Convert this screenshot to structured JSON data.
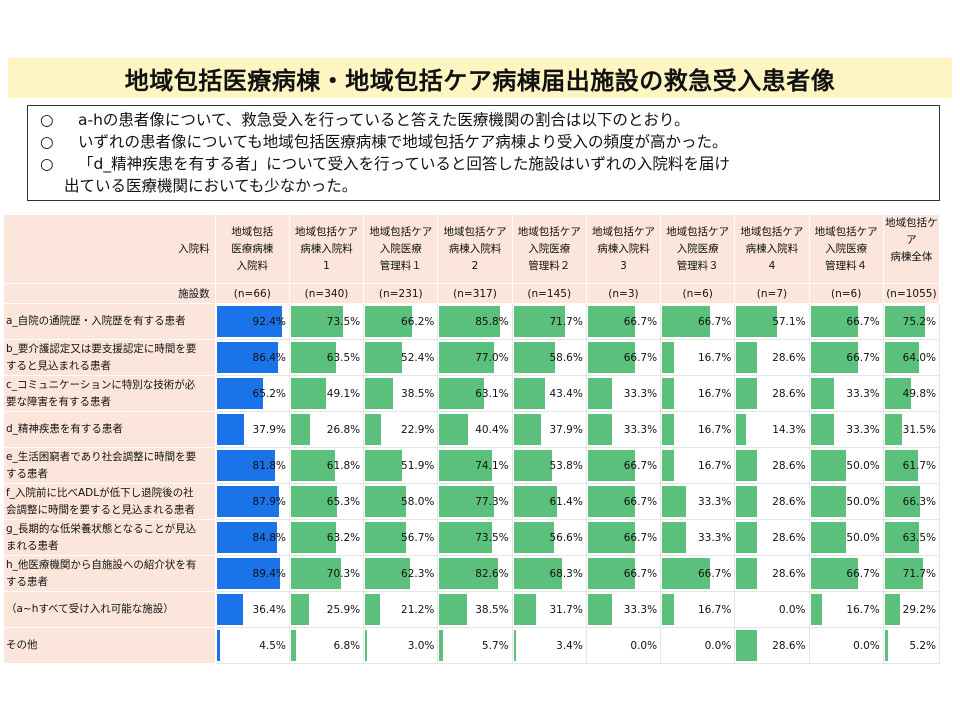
{
  "title": "地域包括医療病棟・地域包括ケア病棟届出施設の救急受入患者像",
  "summary": [
    {
      "mark": "○",
      "text": "a-hの患者像について、救急受入を行っていると答えた医療機関の割合は以下のとおり。"
    },
    {
      "mark": "○",
      "text": "いずれの患者像についても地域包括医療病棟で地域包括ケア病棟より受入の頻度が高かった。"
    },
    {
      "mark": "○",
      "text": "「d_精神疾患を有する者」について受入を行っていると回答した施設はいずれの入院料を届け"
    }
  ],
  "summary_cont": "出ている医療機関においても少なかった。",
  "header_label": "入院料",
  "n_label": "施設数",
  "colors": {
    "blue": "#1a73e8",
    "green": "#5cc07d",
    "bg": "#fce6dc",
    "title_bg": "#fff5c2"
  },
  "columns": [
    {
      "l1": "地域包括",
      "l2": "医療病棟",
      "l3": "入院料",
      "n": "(n=66)"
    },
    {
      "l1": "地域包括ケア",
      "l2": "病棟入院料",
      "l3": "1",
      "n": "(n=340)"
    },
    {
      "l1": "地域包括ケア",
      "l2": "入院医療",
      "l3": "管理料１",
      "n": "(n=231)"
    },
    {
      "l1": "地域包括ケア",
      "l2": "病棟入院料",
      "l3": "2",
      "n": "(n=317)"
    },
    {
      "l1": "地域包括ケア",
      "l2": "入院医療",
      "l3": "管理料２",
      "n": "(n=145)"
    },
    {
      "l1": "地域包括ケア",
      "l2": "病棟入院料",
      "l3": "3",
      "n": "(n=3)"
    },
    {
      "l1": "地域包括ケア",
      "l2": "入院医療",
      "l3": "管理料３",
      "n": "(n=6)"
    },
    {
      "l1": "地域包括ケア",
      "l2": "病棟入院料",
      "l3": "4",
      "n": "(n=7)"
    },
    {
      "l1": "地域包括ケア",
      "l2": "入院医療",
      "l3": "管理料４",
      "n": "(n=6)"
    },
    {
      "l1": "地域包括ケア",
      "l2": "病棟全体",
      "l3": "",
      "n": "(n=1055)"
    }
  ],
  "rows": [
    {
      "l1": "a_自院の通院歴・入院歴を有する患者",
      "l2": "",
      "values": [
        92.4,
        73.5,
        66.2,
        85.8,
        71.7,
        66.7,
        66.7,
        57.1,
        66.7,
        75.2
      ],
      "labels": [
        "92.4%",
        "73.5%",
        "66.2%",
        "85.8%",
        "71.7%",
        "66.7%",
        "66.7%",
        "57.1%",
        "66.7%",
        "75.2%"
      ]
    },
    {
      "l1": "b_要介護認定又は要支援認定に時間を要",
      "l2": "すると見込まれる患者",
      "values": [
        86.4,
        63.5,
        52.4,
        77.0,
        58.6,
        66.7,
        16.7,
        28.6,
        66.7,
        64.0
      ],
      "labels": [
        "86.4%",
        "63.5%",
        "52.4%",
        "77.0%",
        "58.6%",
        "66.7%",
        "16.7%",
        "28.6%",
        "66.7%",
        "64.0%"
      ]
    },
    {
      "l1": "c_コミュニケーションに特別な技術が必",
      "l2": "要な障害を有する患者",
      "values": [
        65.2,
        49.1,
        38.5,
        63.1,
        43.4,
        33.3,
        16.7,
        28.6,
        33.3,
        49.8
      ],
      "labels": [
        "65.2%",
        "49.1%",
        "38.5%",
        "63.1%",
        "43.4%",
        "33.3%",
        "16.7%",
        "28.6%",
        "33.3%",
        "49.8%"
      ]
    },
    {
      "l1": "d_精神疾患を有する患者",
      "l2": "",
      "values": [
        37.9,
        26.8,
        22.9,
        40.4,
        37.9,
        33.3,
        16.7,
        14.3,
        33.3,
        31.5
      ],
      "labels": [
        "37.9%",
        "26.8%",
        "22.9%",
        "40.4%",
        "37.9%",
        "33.3%",
        "16.7%",
        "14.3%",
        "33.3%",
        "31.5%"
      ]
    },
    {
      "l1": "e_生活困窮者であり社会調整に時間を要",
      "l2": "する患者",
      "values": [
        81.8,
        61.8,
        51.9,
        74.1,
        53.8,
        66.7,
        16.7,
        28.6,
        50.0,
        61.7
      ],
      "labels": [
        "81.8%",
        "61.8%",
        "51.9%",
        "74.1%",
        "53.8%",
        "66.7%",
        "16.7%",
        "28.6%",
        "50.0%",
        "61.7%"
      ]
    },
    {
      "l1": "f_入院前に比べADLが低下し退院後の社",
      "l2": "会調整に時間を要すると見込まれる患者",
      "values": [
        87.9,
        65.3,
        58.0,
        77.3,
        61.4,
        66.7,
        33.3,
        28.6,
        50.0,
        66.3
      ],
      "labels": [
        "87.9%",
        "65.3%",
        "58.0%",
        "77.3%",
        "61.4%",
        "66.7%",
        "33.3%",
        "28.6%",
        "50.0%",
        "66.3%"
      ]
    },
    {
      "l1": "g_長期的な低栄養状態となることが見込",
      "l2": "まれる患者",
      "values": [
        84.8,
        63.2,
        56.7,
        73.5,
        56.6,
        66.7,
        33.3,
        28.6,
        50.0,
        63.5
      ],
      "labels": [
        "84.8%",
        "63.2%",
        "56.7%",
        "73.5%",
        "56.6%",
        "66.7%",
        "33.3%",
        "28.6%",
        "50.0%",
        "63.5%"
      ]
    },
    {
      "l1": "h_他医療機関から自施設への紹介状を有",
      "l2": "する患者",
      "values": [
        89.4,
        70.3,
        62.3,
        82.6,
        68.3,
        66.7,
        66.7,
        28.6,
        66.7,
        71.7
      ],
      "labels": [
        "89.4%",
        "70.3%",
        "62.3%",
        "82.6%",
        "68.3%",
        "66.7%",
        "66.7%",
        "28.6%",
        "66.7%",
        "71.7%"
      ]
    },
    {
      "l1": "（a~hすべて受け入れ可能な施設）",
      "l2": "",
      "values": [
        36.4,
        25.9,
        21.2,
        38.5,
        31.7,
        33.3,
        16.7,
        0.0,
        16.7,
        29.2
      ],
      "labels": [
        "36.4%",
        "25.9%",
        "21.2%",
        "38.5%",
        "31.7%",
        "33.3%",
        "16.7%",
        "0.0%",
        "16.7%",
        "29.2%"
      ]
    },
    {
      "l1": "その他",
      "l2": "",
      "values": [
        4.5,
        6.8,
        3.0,
        5.7,
        3.4,
        0.0,
        0.0,
        28.6,
        0.0,
        5.2
      ],
      "labels": [
        "4.5%",
        "6.8%",
        "3.0%",
        "5.7%",
        "3.4%",
        "0.0%",
        "0.0%",
        "28.6%",
        "0.0%",
        "5.2%"
      ]
    }
  ]
}
